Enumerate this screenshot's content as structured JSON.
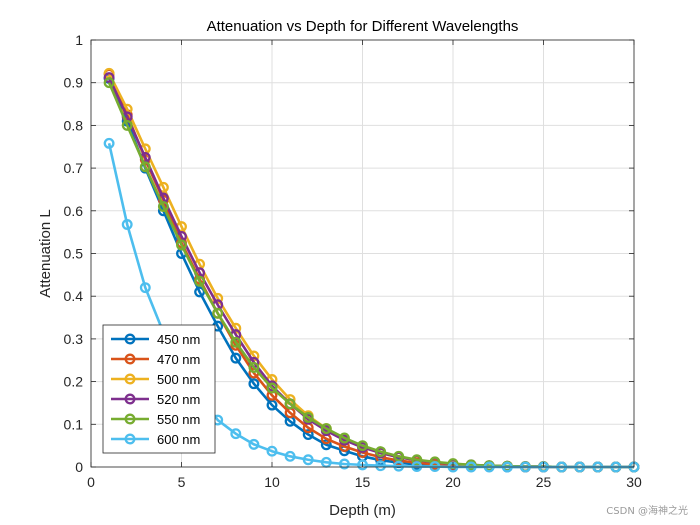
{
  "chart_data": {
    "type": "line",
    "title": "Attenuation vs Depth for Different Wavelengths",
    "xlabel": "Depth (m)",
    "ylabel": "Attenuation L",
    "xlim": [
      0,
      30
    ],
    "ylim": [
      0,
      1
    ],
    "xticks": [
      0,
      5,
      10,
      15,
      20,
      25,
      30
    ],
    "yticks": [
      0,
      0.1,
      0.2,
      0.3,
      0.4,
      0.5,
      0.6,
      0.7,
      0.8,
      0.9,
      1
    ],
    "grid": true,
    "legend_position": "bottom-left",
    "marker": "circle",
    "x": [
      1,
      2,
      3,
      4,
      5,
      6,
      7,
      8,
      9,
      10,
      11,
      12,
      13,
      14,
      15,
      16,
      17,
      18,
      19,
      20,
      21,
      22,
      23,
      24,
      25,
      26,
      27,
      28,
      29,
      30
    ],
    "series": [
      {
        "name": "450 nm",
        "color": "#0072BD",
        "values": [
          0.91,
          0.81,
          0.7,
          0.6,
          0.5,
          0.41,
          0.33,
          0.255,
          0.195,
          0.145,
          0.107,
          0.076,
          0.052,
          0.038,
          0.025,
          0.016,
          0.01,
          0.006,
          0.004,
          0.002,
          0.001,
          0.001,
          0,
          0,
          0,
          0,
          0,
          0,
          0,
          0
        ]
      },
      {
        "name": "470 nm",
        "color": "#D95319",
        "values": [
          0.92,
          0.825,
          0.72,
          0.625,
          0.525,
          0.44,
          0.36,
          0.285,
          0.22,
          0.168,
          0.127,
          0.092,
          0.066,
          0.048,
          0.034,
          0.023,
          0.015,
          0.01,
          0.006,
          0.004,
          0.002,
          0.001,
          0.001,
          0,
          0,
          0,
          0,
          0,
          0,
          0
        ]
      },
      {
        "name": "500 nm",
        "color": "#EDB120",
        "values": [
          0.922,
          0.838,
          0.745,
          0.655,
          0.563,
          0.475,
          0.395,
          0.325,
          0.26,
          0.205,
          0.158,
          0.12,
          0.09,
          0.065,
          0.047,
          0.033,
          0.023,
          0.016,
          0.011,
          0.007,
          0.004,
          0.003,
          0.002,
          0.001,
          0.001,
          0,
          0,
          0,
          0,
          0
        ]
      },
      {
        "name": "520 nm",
        "color": "#7E2F8E",
        "values": [
          0.912,
          0.82,
          0.725,
          0.63,
          0.54,
          0.455,
          0.38,
          0.31,
          0.245,
          0.19,
          0.148,
          0.112,
          0.085,
          0.063,
          0.046,
          0.033,
          0.023,
          0.016,
          0.011,
          0.007,
          0.005,
          0.003,
          0.002,
          0.001,
          0.001,
          0,
          0,
          0,
          0,
          0
        ]
      },
      {
        "name": "550 nm",
        "color": "#77AC30",
        "values": [
          0.9,
          0.8,
          0.703,
          0.61,
          0.52,
          0.435,
          0.36,
          0.292,
          0.233,
          0.185,
          0.148,
          0.116,
          0.09,
          0.068,
          0.05,
          0.036,
          0.025,
          0.017,
          0.012,
          0.008,
          0.005,
          0.003,
          0.002,
          0.001,
          0.001,
          0,
          0,
          0,
          0,
          0
        ]
      },
      {
        "name": "600 nm",
        "color": "#4DBEEE",
        "values": [
          0.758,
          0.568,
          0.42,
          0.315,
          0.24,
          0.17,
          0.11,
          0.078,
          0.053,
          0.037,
          0.025,
          0.017,
          0.011,
          0.007,
          0.005,
          0.003,
          0.002,
          0.001,
          0.001,
          0,
          0,
          0,
          0,
          0,
          0,
          0,
          0,
          0,
          0,
          0
        ]
      }
    ]
  },
  "watermark": "CSDN @海神之光"
}
